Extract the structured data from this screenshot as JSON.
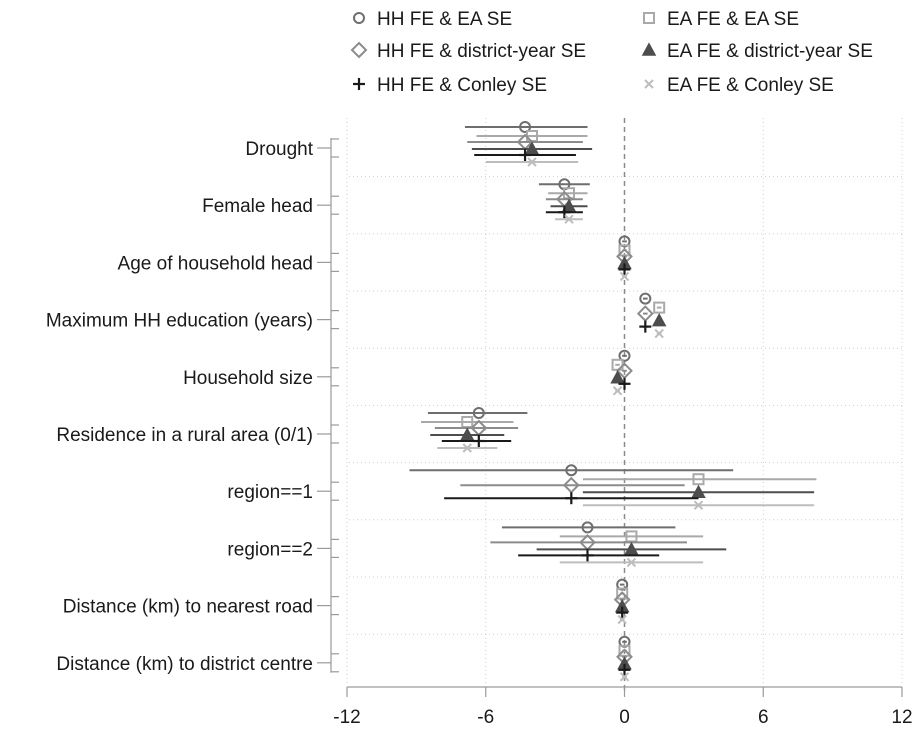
{
  "chart_data": {
    "type": "coefficient-plot",
    "title": "",
    "xlabel": "",
    "ylabel": "",
    "xlim": [
      -12,
      12
    ],
    "xticks": [
      -12,
      -6,
      0,
      6,
      12
    ],
    "xtick_labels": [
      "-12",
      "-6",
      "0",
      "6",
      "12"
    ],
    "reference_line_x": 0,
    "grid": true,
    "legend_position": "top",
    "categories": [
      "Drought",
      "Female head",
      "Age of household head",
      "Maximum HH education (years)",
      "Household size",
      "Residence in a rural area (0/1)",
      "region==1",
      "region==2",
      "Distance (km) to nearest road",
      "Distance (km) to district centre"
    ],
    "series": [
      {
        "name": "HH FE & EA SE",
        "marker": "circle",
        "color": "#6e6e6e",
        "estimates": [
          -4.3,
          -2.6,
          0.0,
          0.9,
          0.0,
          -6.3,
          -2.3,
          -1.6,
          -0.1,
          0.0
        ],
        "ci_low": [
          -6.9,
          -3.7,
          -0.1,
          0.8,
          -0.1,
          -8.5,
          -9.3,
          -5.3,
          -0.2,
          -0.1
        ],
        "ci_high": [
          -1.6,
          -1.5,
          0.1,
          1.0,
          0.1,
          -4.2,
          4.7,
          2.2,
          0.0,
          0.1
        ]
      },
      {
        "name": "EA FE & EA SE",
        "marker": "square",
        "color": "#a9a9a9",
        "estimates": [
          -4.0,
          -2.4,
          0.0,
          1.5,
          -0.3,
          -6.8,
          3.2,
          0.3,
          -0.1,
          0.0
        ],
        "ci_low": [
          -6.4,
          -3.3,
          -0.1,
          1.4,
          -0.4,
          -8.8,
          -1.8,
          -2.8,
          -0.2,
          -0.1
        ],
        "ci_high": [
          -1.6,
          -1.6,
          0.1,
          1.6,
          -0.2,
          -4.8,
          8.3,
          3.4,
          0.0,
          0.1
        ]
      },
      {
        "name": "HH FE & district-year SE",
        "marker": "diamond",
        "color": "#8c8c8c",
        "estimates": [
          -4.3,
          -2.6,
          0.0,
          0.9,
          0.0,
          -6.3,
          -2.3,
          -1.6,
          -0.1,
          0.0
        ],
        "ci_low": [
          -6.8,
          -3.4,
          -0.1,
          0.8,
          -0.1,
          -8.2,
          -7.1,
          -5.8,
          -0.2,
          -0.1
        ],
        "ci_high": [
          -1.8,
          -1.8,
          0.1,
          1.0,
          0.1,
          -4.6,
          2.6,
          2.7,
          0.0,
          0.1
        ]
      },
      {
        "name": "EA FE & district-year SE",
        "marker": "triangle",
        "color": "#4d4d4d",
        "estimates": [
          -4.0,
          -2.4,
          0.0,
          1.5,
          -0.3,
          -6.8,
          3.2,
          0.3,
          -0.1,
          0.0
        ],
        "ci_low": [
          -6.6,
          -3.2,
          -0.1,
          1.4,
          -0.4,
          -8.4,
          -1.8,
          -3.8,
          -0.2,
          -0.1
        ],
        "ci_high": [
          -1.4,
          -1.6,
          0.1,
          1.6,
          -0.2,
          -5.2,
          8.2,
          4.4,
          0.0,
          0.1
        ]
      },
      {
        "name": "HH FE & Conley SE",
        "marker": "plus",
        "color": "#1a1a1a",
        "estimates": [
          -4.3,
          -2.6,
          0.0,
          0.9,
          0.0,
          -6.3,
          -2.3,
          -1.6,
          -0.1,
          0.0
        ],
        "ci_low": [
          -6.5,
          -3.4,
          -0.1,
          0.8,
          -0.1,
          -7.9,
          -7.8,
          -4.6,
          -0.2,
          -0.1
        ],
        "ci_high": [
          -2.1,
          -1.8,
          0.1,
          1.0,
          0.1,
          -4.9,
          3.2,
          1.5,
          0.0,
          0.1
        ]
      },
      {
        "name": "EA FE & Conley SE",
        "marker": "x",
        "color": "#bdbdbd",
        "estimates": [
          -4.0,
          -2.4,
          0.0,
          1.5,
          -0.3,
          -6.8,
          3.2,
          0.3,
          -0.1,
          0.0
        ],
        "ci_low": [
          -6.0,
          -3.0,
          -0.1,
          1.4,
          -0.4,
          -8.1,
          -1.8,
          -2.8,
          -0.2,
          -0.1
        ],
        "ci_high": [
          -2.0,
          -1.8,
          0.1,
          1.6,
          -0.2,
          -5.5,
          8.2,
          3.4,
          0.0,
          0.1
        ]
      }
    ]
  }
}
